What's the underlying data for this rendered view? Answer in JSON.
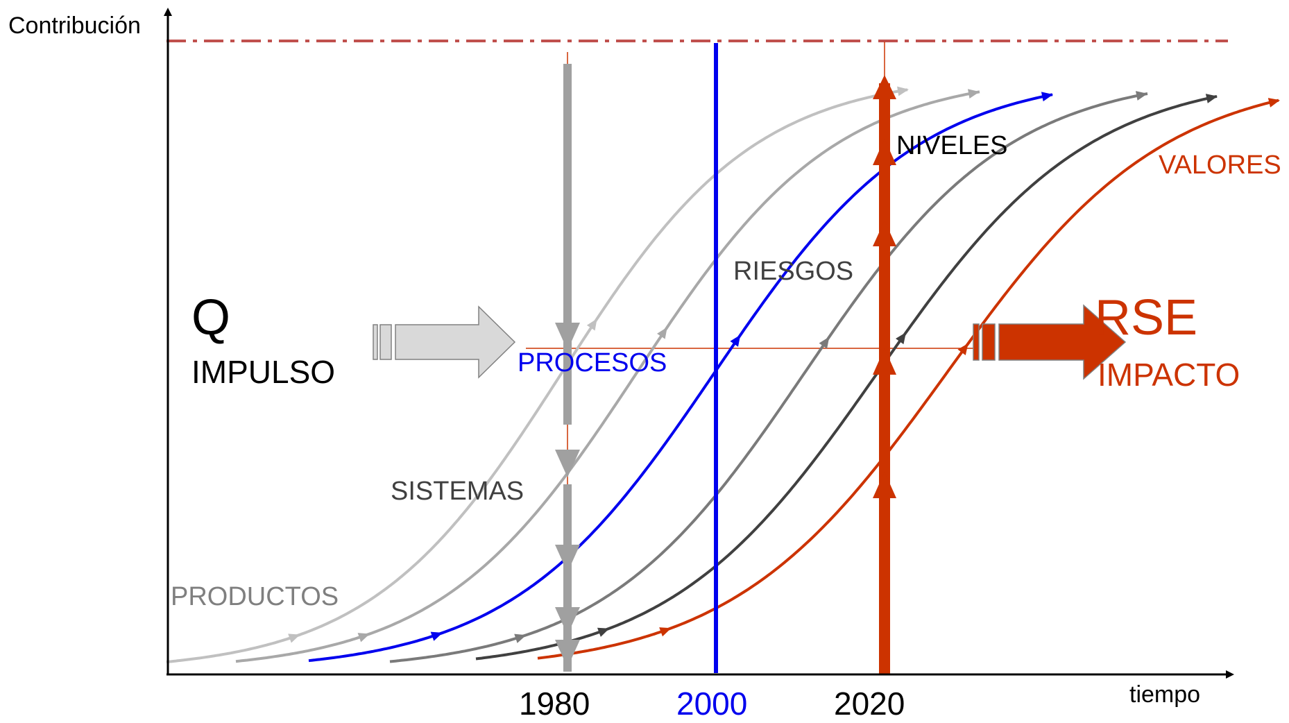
{
  "axes": {
    "y_label": "Contribución",
    "x_label": "tiempo"
  },
  "years": [
    {
      "label": "1980",
      "color": "#000000"
    },
    {
      "label": "2000",
      "color": "#0000ee"
    },
    {
      "label": "2020",
      "color": "#000000"
    }
  ],
  "left_block": {
    "q": "Q",
    "impulso": "IMPULSO"
  },
  "right_block": {
    "rse": "RSE",
    "impacto": "IMPACTO"
  },
  "curves": [
    {
      "label": "PRODUCTOS",
      "color": "#c0c0c0"
    },
    {
      "label": "SISTEMAS",
      "color": "#a8a8a8"
    },
    {
      "label": "PROCESOS",
      "color": "#0000ee"
    },
    {
      "label": "RIESGOS",
      "color": "#7a7a7a"
    },
    {
      "label": "NIVELES",
      "color": "#404040"
    },
    {
      "label": "VALORES",
      "color": "#cc3300"
    }
  ],
  "colors": {
    "limit_line": "#c0504d",
    "rse_orange": "#cc3300",
    "impulse_gray": "#d9d9d9",
    "down_arrow_gray": "#a0a0a0",
    "blue": "#0000ee"
  }
}
